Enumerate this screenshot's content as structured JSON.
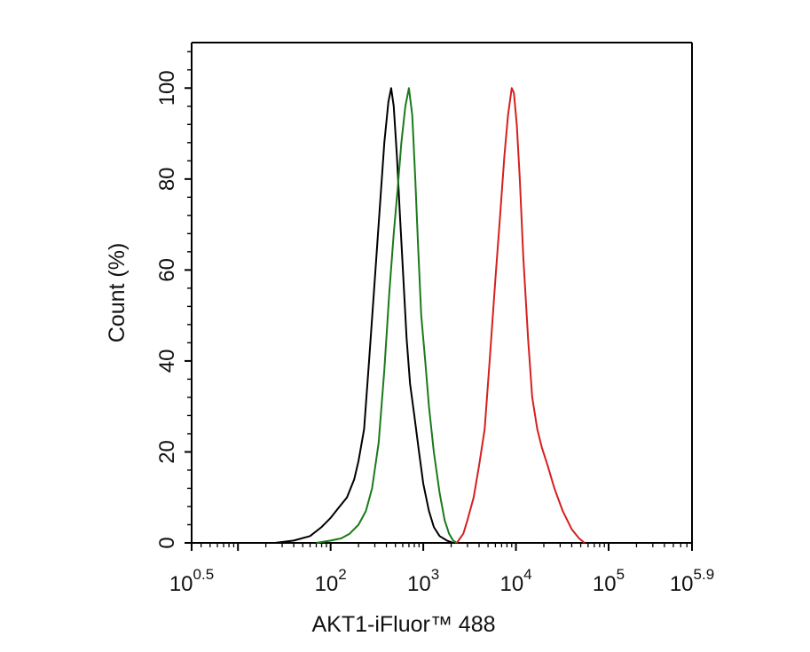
{
  "chart_data": {
    "type": "histogram",
    "title": "",
    "xlabel": "AKT1-iFluor™ 488",
    "ylabel": "Count  (%)",
    "xscale": "log10",
    "xlim": [
      3.1623,
      794328
    ],
    "ylim": [
      0,
      110
    ],
    "grid": false,
    "legend": "none",
    "x_ticks": [
      {
        "value": 3.1623,
        "base": "10",
        "exponent": "0.5"
      },
      {
        "value": 100,
        "base": "10",
        "exponent": "2"
      },
      {
        "value": 1000,
        "base": "10",
        "exponent": "3"
      },
      {
        "value": 10000,
        "base": "10",
        "exponent": "4"
      },
      {
        "value": 100000,
        "base": "10",
        "exponent": "5"
      },
      {
        "value": 794328,
        "base": "10",
        "exponent": "5.9"
      }
    ],
    "y_ticks": [
      {
        "value": 0,
        "label": "0"
      },
      {
        "value": 20,
        "label": "20"
      },
      {
        "value": 40,
        "label": "40"
      },
      {
        "value": 60,
        "label": "60"
      },
      {
        "value": 80,
        "label": "80"
      },
      {
        "value": 100,
        "label": "100"
      }
    ],
    "series": [
      {
        "color": "#000000",
        "x": [
          25,
          40,
          60,
          80,
          100,
          125,
          150,
          180,
          200,
          230,
          260,
          300,
          340,
          380,
          420,
          450,
          480,
          520,
          560,
          610,
          660,
          720,
          800,
          900,
          1000,
          1150,
          1300,
          1500,
          1800,
          2100
        ],
        "y": [
          0,
          0.5,
          1.5,
          3.5,
          5.5,
          8,
          10,
          14,
          18,
          25,
          40,
          58,
          74,
          88,
          97,
          100,
          96,
          85,
          72,
          58,
          45,
          35,
          28,
          20,
          13,
          7,
          3.5,
          1.5,
          0.5,
          0
        ]
      },
      {
        "color": "#1a7a1a",
        "x": [
          70,
          100,
          130,
          160,
          200,
          240,
          280,
          330,
          380,
          430,
          480,
          530,
          580,
          640,
          700,
          760,
          820,
          880,
          950,
          1050,
          1150,
          1300,
          1500,
          1700,
          1900,
          2100,
          2300
        ],
        "y": [
          0,
          0.5,
          1,
          2,
          4,
          7,
          12,
          22,
          38,
          55,
          68,
          78,
          88,
          96,
          100,
          94,
          80,
          65,
          50,
          40,
          30,
          20,
          11,
          5,
          2,
          0.5,
          0
        ]
      },
      {
        "color": "#d42020",
        "x": [
          2300,
          2700,
          3000,
          3500,
          4000,
          4600,
          5200,
          6000,
          6800,
          7500,
          8200,
          9000,
          9500,
          10200,
          11000,
          12000,
          13500,
          15000,
          17000,
          19000,
          22000,
          26000,
          32000,
          40000,
          48000,
          55000
        ],
        "y": [
          0,
          2,
          5,
          10,
          17,
          25,
          40,
          58,
          73,
          85,
          94,
          100,
          99,
          92,
          80,
          63,
          45,
          32,
          25,
          21,
          17,
          12,
          7,
          3,
          1,
          0
        ]
      }
    ]
  }
}
